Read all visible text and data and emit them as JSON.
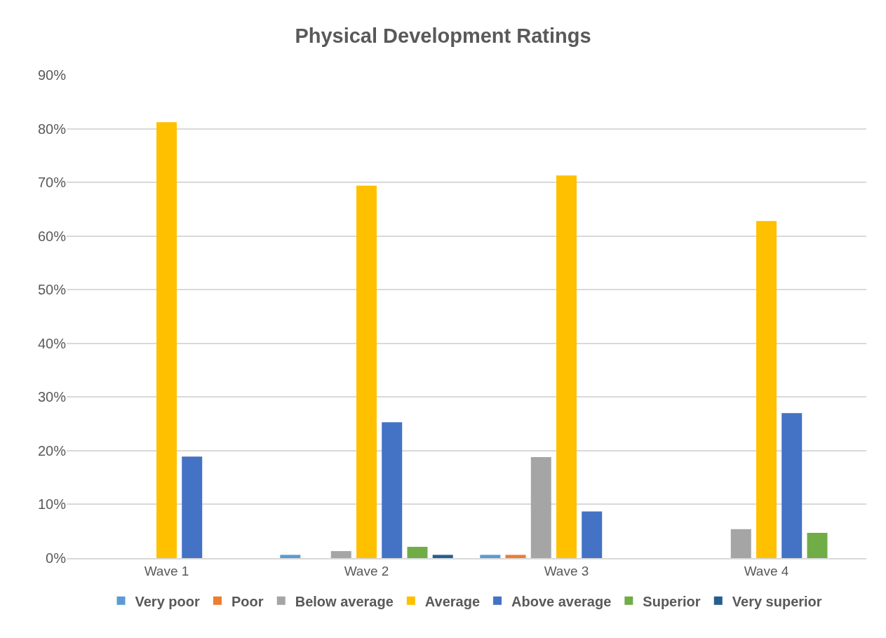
{
  "chart_data": {
    "type": "bar",
    "title": "Physical Development Ratings",
    "categories": [
      "Wave 1",
      "Wave 2",
      "Wave 3",
      "Wave 4"
    ],
    "series": [
      {
        "name": "Very poor",
        "color": "#5b9bd5",
        "values": [
          0,
          0.6,
          0.6,
          0
        ]
      },
      {
        "name": "Poor",
        "color": "#ed7d31",
        "values": [
          0,
          0,
          0.6,
          0
        ]
      },
      {
        "name": "Below average",
        "color": "#a5a5a5",
        "values": [
          0,
          1.3,
          18.8,
          5.4
        ]
      },
      {
        "name": "Average",
        "color": "#ffc000",
        "values": [
          81.2,
          69.4,
          71.3,
          62.8
        ]
      },
      {
        "name": "Above average",
        "color": "#4472c4",
        "values": [
          18.9,
          25.3,
          8.7,
          27
        ]
      },
      {
        "name": "Superior",
        "color": "#70ad47",
        "values": [
          0,
          2.1,
          0,
          4.7
        ]
      },
      {
        "name": "Very superior",
        "color": "#255e91",
        "values": [
          0,
          0.6,
          0,
          0
        ]
      }
    ],
    "ylim": [
      0,
      90
    ],
    "yticks": [
      {
        "value": 0,
        "label": "0%"
      },
      {
        "value": 10,
        "label": "10%"
      },
      {
        "value": 20,
        "label": "20%"
      },
      {
        "value": 30,
        "label": "30%"
      },
      {
        "value": 40,
        "label": "40%"
      },
      {
        "value": 50,
        "label": "50%"
      },
      {
        "value": 60,
        "label": "60%"
      },
      {
        "value": 70,
        "label": "70%"
      },
      {
        "value": 80,
        "label": "80%"
      },
      {
        "value": 90,
        "label": "90%"
      }
    ],
    "grid": "y",
    "legend": "bottom"
  }
}
